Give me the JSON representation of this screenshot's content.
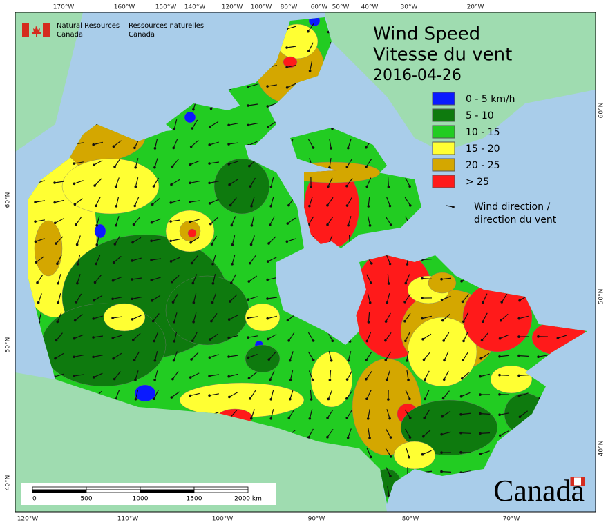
{
  "header": {
    "agency_en": [
      "Natural Resources",
      "Canada"
    ],
    "agency_fr": [
      "Ressources naturelles",
      "Canada"
    ]
  },
  "title": {
    "line1": "Wind Speed",
    "line2": "Vitesse du vent",
    "date": "2016-04-26"
  },
  "legend": {
    "items": [
      {
        "label": "0 - 5 km/h",
        "color": "#0a1aff"
      },
      {
        "label": "5 - 10",
        "color": "#0e7a0e"
      },
      {
        "label": "10 - 15",
        "color": "#22cc22"
      },
      {
        "label": "15 - 20",
        "color": "#ffff33"
      },
      {
        "label": "20 - 25",
        "color": "#d4a700"
      },
      {
        "label": "> 25",
        "color": "#ff1a1a"
      }
    ],
    "arrow_label": [
      "Wind direction /",
      "direction du vent"
    ]
  },
  "graticule": {
    "top": [
      "170°W",
      "160°W",
      "150°W",
      "140°W",
      "120°W",
      "100°W",
      "80°W",
      "60°W",
      "50°W",
      "40°W",
      "30°W",
      "20°W"
    ],
    "bottom": [
      "120°W",
      "110°W",
      "100°W",
      "90°W",
      "80°W",
      "70°W"
    ],
    "left": [
      "60°N",
      "50°N",
      "40°N"
    ],
    "right": [
      "60°N",
      "50°N",
      "40°N"
    ]
  },
  "scale_bar": {
    "labels": [
      "0",
      "500",
      "1000",
      "1500",
      "2000 km"
    ]
  },
  "wordmark": "Canada"
}
